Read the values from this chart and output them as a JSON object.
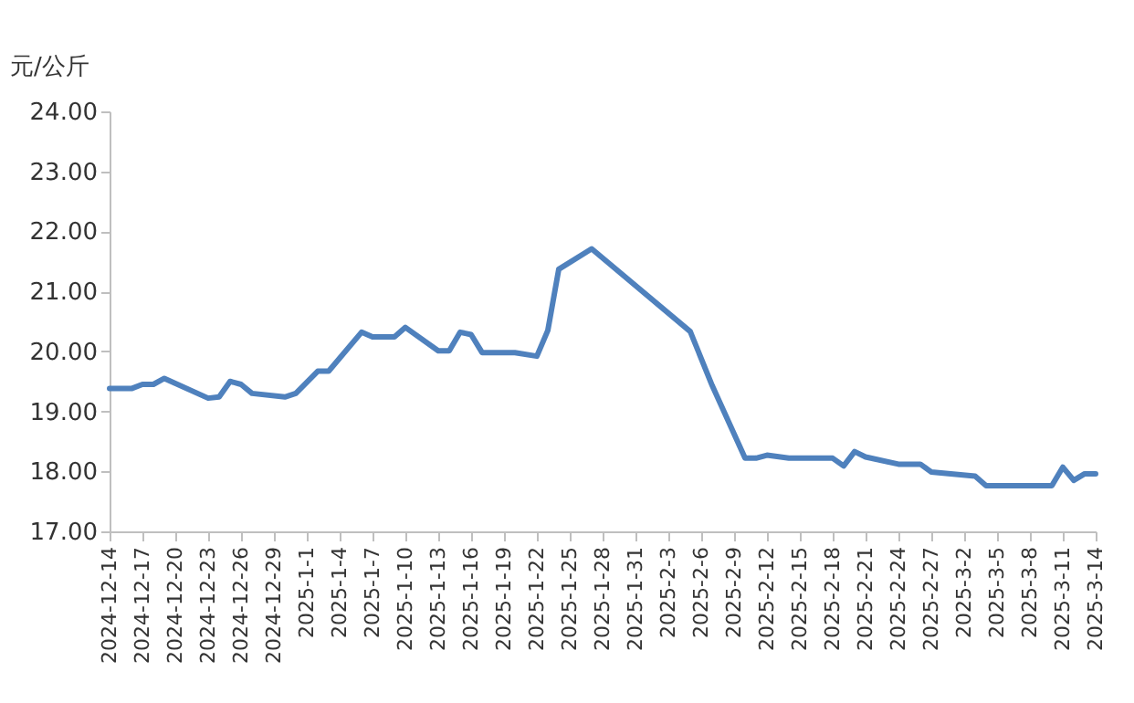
{
  "chart_data": {
    "type": "line",
    "ylabel": "元/公斤",
    "x": [
      "2024-12-14",
      "2024-12-16",
      "2024-12-17",
      "2024-12-18",
      "2024-12-19",
      "2024-12-23",
      "2024-12-24",
      "2024-12-25",
      "2024-12-26",
      "2024-12-27",
      "2024-12-30",
      "2024-12-31",
      "2025-01-02",
      "2025-01-03",
      "2025-01-06",
      "2025-01-07",
      "2025-01-09",
      "2025-01-10",
      "2025-01-13",
      "2025-01-14",
      "2025-01-15",
      "2025-01-16",
      "2025-01-17",
      "2025-01-20",
      "2025-01-22",
      "2025-01-23",
      "2025-01-24",
      "2025-01-27",
      "2025-02-05",
      "2025-02-07",
      "2025-02-10",
      "2025-02-11",
      "2025-02-12",
      "2025-02-14",
      "2025-02-18",
      "2025-02-19",
      "2025-02-20",
      "2025-02-21",
      "2025-02-24",
      "2025-02-26",
      "2025-02-27",
      "2025-03-03",
      "2025-03-04",
      "2025-03-10",
      "2025-03-11",
      "2025-03-12",
      "2025-03-13",
      "2025-03-14"
    ],
    "series": [
      {
        "color": "#4f81bd",
        "values": [
          19.38,
          19.38,
          19.45,
          19.45,
          19.55,
          19.22,
          19.24,
          19.5,
          19.45,
          19.3,
          19.24,
          19.3,
          19.67,
          19.67,
          20.32,
          20.24,
          20.24,
          20.4,
          20.01,
          20.01,
          20.32,
          20.28,
          19.98,
          19.98,
          19.92,
          20.35,
          21.37,
          21.71,
          20.33,
          19.43,
          18.22,
          18.22,
          18.27,
          18.22,
          18.22,
          18.09,
          18.33,
          18.24,
          18.12,
          18.12,
          17.99,
          17.92,
          17.76,
          17.76,
          18.07,
          17.85,
          17.96,
          17.96
        ]
      }
    ],
    "xlim": [
      "2024-12-14",
      "2025-03-14"
    ],
    "xticks": [
      {
        "value": "2024-12-14",
        "label": "2024-12-14"
      },
      {
        "value": "2024-12-17",
        "label": "2024-12-17"
      },
      {
        "value": "2024-12-20",
        "label": "2024-12-20"
      },
      {
        "value": "2024-12-23",
        "label": "2024-12-23"
      },
      {
        "value": "2024-12-26",
        "label": "2024-12-26"
      },
      {
        "value": "2024-12-29",
        "label": "2024-12-29"
      },
      {
        "value": "2025-01-01",
        "label": "2025-1-1"
      },
      {
        "value": "2025-01-04",
        "label": "2025-1-4"
      },
      {
        "value": "2025-01-07",
        "label": "2025-1-7"
      },
      {
        "value": "2025-01-10",
        "label": "2025-1-10"
      },
      {
        "value": "2025-01-13",
        "label": "2025-1-13"
      },
      {
        "value": "2025-01-16",
        "label": "2025-1-16"
      },
      {
        "value": "2025-01-19",
        "label": "2025-1-19"
      },
      {
        "value": "2025-01-22",
        "label": "2025-1-22"
      },
      {
        "value": "2025-01-25",
        "label": "2025-1-25"
      },
      {
        "value": "2025-01-28",
        "label": "2025-1-28"
      },
      {
        "value": "2025-01-31",
        "label": "2025-1-31"
      },
      {
        "value": "2025-02-03",
        "label": "2025-2-3"
      },
      {
        "value": "2025-02-06",
        "label": "2025-2-6"
      },
      {
        "value": "2025-02-09",
        "label": "2025-2-9"
      },
      {
        "value": "2025-02-12",
        "label": "2025-2-12"
      },
      {
        "value": "2025-02-15",
        "label": "2025-2-15"
      },
      {
        "value": "2025-02-18",
        "label": "2025-2-18"
      },
      {
        "value": "2025-02-21",
        "label": "2025-2-21"
      },
      {
        "value": "2025-02-24",
        "label": "2025-2-24"
      },
      {
        "value": "2025-02-27",
        "label": "2025-2-27"
      },
      {
        "value": "2025-03-02",
        "label": "2025-3-2"
      },
      {
        "value": "2025-03-05",
        "label": "2025-3-5"
      },
      {
        "value": "2025-03-08",
        "label": "2025-3-8"
      },
      {
        "value": "2025-03-11",
        "label": "2025-3-11"
      },
      {
        "value": "2025-03-14",
        "label": "2025-3-14"
      }
    ],
    "ylim": [
      17,
      24
    ],
    "yticks": [
      {
        "value": 17,
        "label": "17.00"
      },
      {
        "value": 18,
        "label": "18.00"
      },
      {
        "value": 19,
        "label": "19.00"
      },
      {
        "value": 20,
        "label": "20.00"
      },
      {
        "value": 21,
        "label": "21.00"
      },
      {
        "value": 22,
        "label": "22.00"
      },
      {
        "value": 23,
        "label": "23.00"
      },
      {
        "value": 24,
        "label": "24.00"
      }
    ],
    "grid": false,
    "legend": false,
    "marker": "none",
    "line_style": "solid"
  }
}
